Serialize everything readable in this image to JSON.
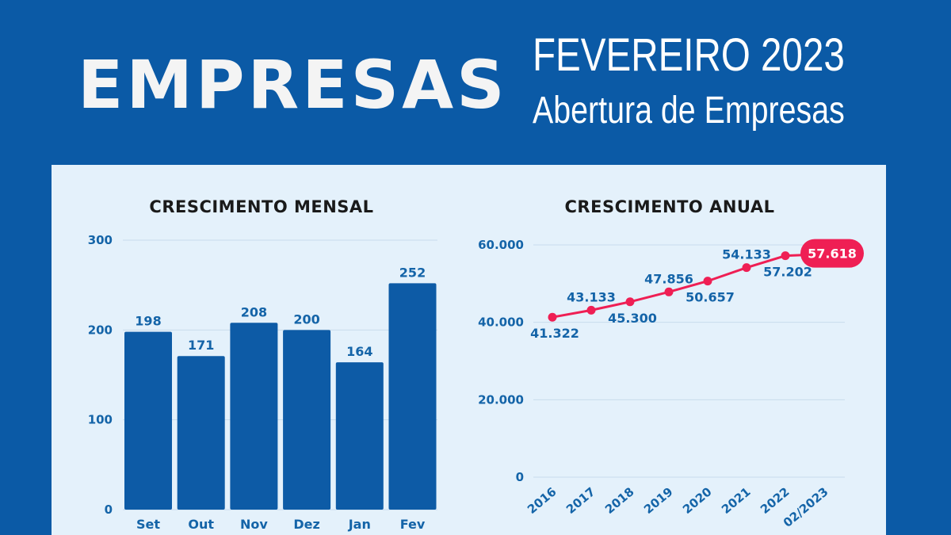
{
  "header": {
    "title": "EMPRESAS",
    "month": "FEVEREIRO 2023",
    "subtitle": "Abertura de Empresas"
  },
  "colors": {
    "background": "#0b5aa6",
    "panel": "#e4f1fb",
    "bar": "#0d5ba6",
    "line": "#ef1f54",
    "text": "#1464a8"
  },
  "chart_data": [
    {
      "type": "bar",
      "title": "CRESCIMENTO MENSAL",
      "categories": [
        "Set",
        "Out",
        "Nov",
        "Dez",
        "Jan",
        "Fev"
      ],
      "values": [
        198,
        171,
        208,
        200,
        164,
        252
      ],
      "yticks": [
        "0",
        "100",
        "200",
        "300"
      ],
      "ylim": [
        0,
        300
      ],
      "grid": true
    },
    {
      "type": "line",
      "title": "CRESCIMENTO ANUAL",
      "categories": [
        "2016",
        "2017",
        "2018",
        "2019",
        "2020",
        "2021",
        "2022",
        "02/2023"
      ],
      "values": [
        41322,
        43133,
        45300,
        47856,
        50657,
        54133,
        57202,
        57618
      ],
      "labels": [
        "41.322",
        "43.133",
        "45.300",
        "47.856",
        "50.657",
        "54.133",
        "57.202",
        "57.618"
      ],
      "yticks": [
        "0",
        "20.000",
        "40.000",
        "60.000"
      ],
      "ylim": [
        0,
        60000
      ],
      "grid": true,
      "highlight": "57.618"
    }
  ]
}
